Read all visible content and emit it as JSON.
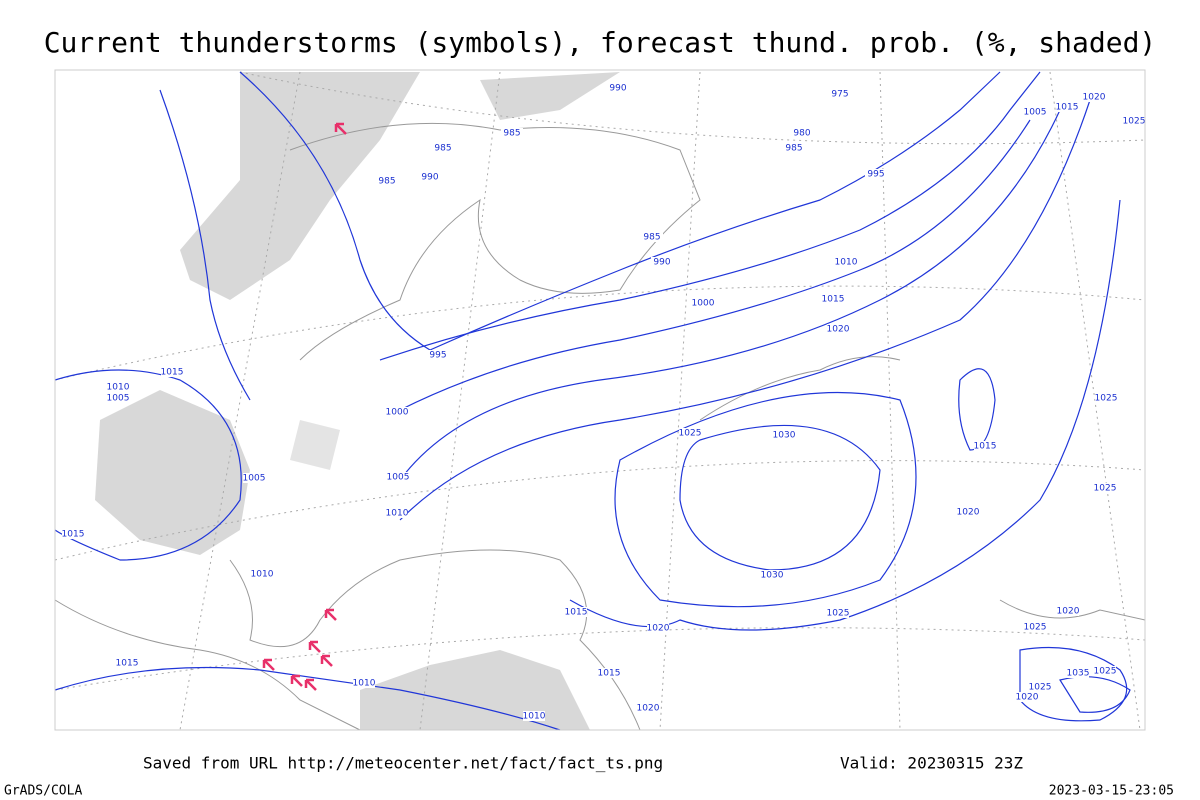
{
  "header": {
    "title": "Current thunderstorms (symbols), forecast thund. prob. (%, shaded)"
  },
  "isobar_labels": [
    "990",
    "975",
    "980",
    "985",
    "985",
    "985",
    "990",
    "985",
    "995",
    "985",
    "990",
    "1010",
    "1015",
    "1000",
    "1020",
    "995",
    "1015",
    "1010",
    "1005",
    "1000",
    "1025",
    "1030",
    "1005",
    "1005",
    "1010",
    "1015",
    "1020",
    "1025",
    "1025",
    "1015",
    "1010",
    "1030",
    "1025",
    "1015",
    "1020",
    "1015",
    "1015",
    "1010",
    "1010",
    "1020",
    "1005",
    "1015",
    "1020",
    "1025",
    "1020",
    "1025",
    "1035",
    "1025",
    "1025",
    "1020"
  ],
  "footer": {
    "source": "Saved from URL http://meteocenter.net/fact/fact_ts.png",
    "valid": "Valid: 20230315 23Z",
    "software": "GrADS/COLA",
    "timestamp": "2023-03-15-23:05"
  }
}
